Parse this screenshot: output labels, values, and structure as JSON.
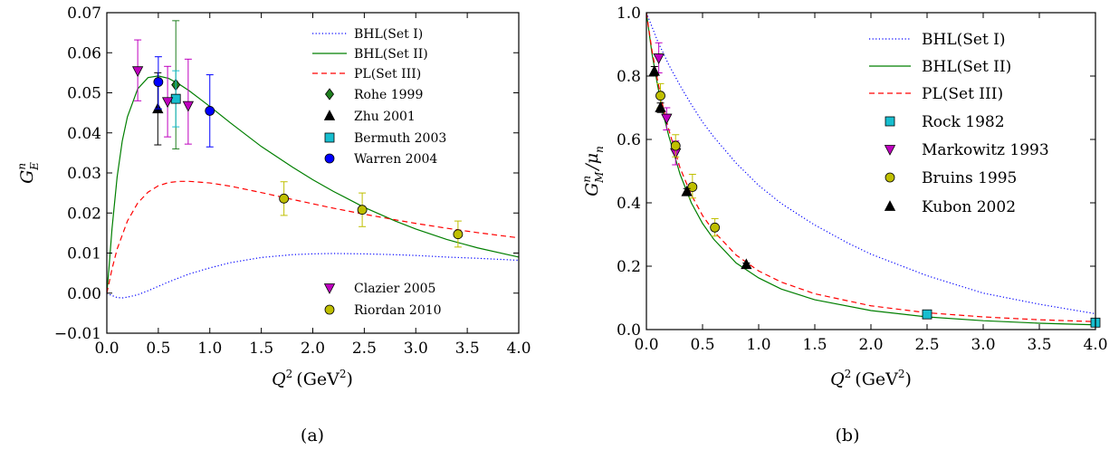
{
  "chart_data": [
    {
      "type": "line",
      "panel_label": "(a)",
      "xlabel_var": "Q",
      "xlabel_sup": "2",
      "xlabel_unit": "(GeV",
      "xlabel_unit_sup": "2",
      "xlabel_close": ")",
      "ylabel_var": "G",
      "ylabel_sup": "n",
      "ylabel_sub": "E",
      "xlim": [
        0,
        4
      ],
      "ylim": [
        -0.01,
        0.07
      ],
      "xticks": [
        "0.0",
        "0.5",
        "1.0",
        "1.5",
        "2.0",
        "2.5",
        "3.0",
        "3.5",
        "4.0"
      ],
      "yticks": [
        "−0.01",
        "0.00",
        "0.01",
        "0.02",
        "0.03",
        "0.04",
        "0.05",
        "0.06",
        "0.07"
      ],
      "grid": false,
      "legend_placement": "upper-right and lower-right",
      "series": [
        {
          "name": "BHL(Set I)",
          "kind": "line",
          "style": "dotted",
          "color": "#0000ff",
          "x": [
            0,
            0.05,
            0.1,
            0.15,
            0.2,
            0.3,
            0.4,
            0.6,
            0.8,
            1.0,
            1.2,
            1.5,
            1.8,
            2.0,
            2.2,
            2.5,
            2.8,
            3.0,
            3.3,
            3.6,
            4.0
          ],
          "y": [
            0.0,
            -0.0006,
            -0.0011,
            -0.0012,
            -0.001,
            -0.0004,
            0.0006,
            0.0028,
            0.0048,
            0.0063,
            0.0076,
            0.0089,
            0.0096,
            0.0098,
            0.0099,
            0.0098,
            0.0096,
            0.0094,
            0.009,
            0.0087,
            0.0082
          ]
        },
        {
          "name": "BHL(Set II)",
          "kind": "line",
          "style": "solid",
          "color": "#007f00",
          "x": [
            0,
            0.02,
            0.05,
            0.1,
            0.15,
            0.2,
            0.3,
            0.4,
            0.5,
            0.6,
            0.7,
            0.8,
            1.0,
            1.2,
            1.5,
            1.8,
            2.0,
            2.2,
            2.5,
            2.8,
            3.0,
            3.3,
            3.6,
            4.0
          ],
          "y": [
            0.0,
            0.006,
            0.016,
            0.029,
            0.038,
            0.044,
            0.051,
            0.0538,
            0.0542,
            0.0536,
            0.0522,
            0.0505,
            0.0466,
            0.0425,
            0.0366,
            0.0315,
            0.0283,
            0.0254,
            0.0214,
            0.018,
            0.016,
            0.0134,
            0.0113,
            0.009
          ]
        },
        {
          "name": "PL(Set III)",
          "kind": "line",
          "style": "dashed",
          "color": "#ff0000",
          "x": [
            0,
            0.05,
            0.1,
            0.2,
            0.3,
            0.4,
            0.5,
            0.6,
            0.7,
            0.8,
            1.0,
            1.2,
            1.5,
            1.8,
            2.0,
            2.2,
            2.5,
            2.8,
            3.0,
            3.3,
            3.6,
            4.0
          ],
          "y": [
            0.0,
            0.006,
            0.011,
            0.018,
            0.0225,
            0.0252,
            0.0268,
            0.0276,
            0.0279,
            0.0279,
            0.0275,
            0.0267,
            0.0251,
            0.0234,
            0.0223,
            0.0212,
            0.0197,
            0.0183,
            0.0174,
            0.0162,
            0.0151,
            0.0138
          ]
        },
        {
          "name": "Rohe 1999",
          "kind": "points",
          "marker": "diamond",
          "color": "#1f7f1f",
          "points": [
            {
              "x": 0.67,
              "y": 0.052,
              "lo": 0.036,
              "hi": 0.068
            }
          ]
        },
        {
          "name": "Zhu 2001",
          "kind": "points",
          "marker": "triangle-up",
          "color": "#000000",
          "points": [
            {
              "x": 0.495,
              "y": 0.046,
              "lo": 0.037,
              "hi": 0.055
            }
          ]
        },
        {
          "name": "Bermuth 2003",
          "kind": "points",
          "marker": "square",
          "color": "#17becf",
          "points": [
            {
              "x": 0.67,
              "y": 0.0485,
              "lo": 0.0415,
              "hi": 0.0555
            }
          ]
        },
        {
          "name": "Warren 2004",
          "kind": "points",
          "marker": "circle",
          "color": "#0000ff",
          "points": [
            {
              "x": 0.5,
              "y": 0.0527,
              "lo": 0.046,
              "hi": 0.059
            },
            {
              "x": 1.0,
              "y": 0.0455,
              "lo": 0.0365,
              "hi": 0.0545
            }
          ]
        },
        {
          "name": "Clazier 2005",
          "kind": "points",
          "marker": "triangle-down",
          "color": "#bf00bf",
          "points": [
            {
              "x": 0.3,
              "y": 0.0555,
              "lo": 0.048,
              "hi": 0.0632
            },
            {
              "x": 0.59,
              "y": 0.0478,
              "lo": 0.039,
              "hi": 0.0566
            },
            {
              "x": 0.79,
              "y": 0.0468,
              "lo": 0.0372,
              "hi": 0.0584
            }
          ]
        },
        {
          "name": "Riordan 2010",
          "kind": "points",
          "marker": "circle",
          "color": "#bfbf00",
          "points": [
            {
              "x": 1.72,
              "y": 0.0236,
              "lo": 0.0194,
              "hi": 0.0278
            },
            {
              "x": 2.48,
              "y": 0.0208,
              "lo": 0.0166,
              "hi": 0.025
            },
            {
              "x": 3.41,
              "y": 0.0147,
              "lo": 0.0115,
              "hi": 0.018
            }
          ]
        }
      ]
    },
    {
      "type": "line",
      "panel_label": "(b)",
      "xlabel_var": "Q",
      "xlabel_sup": "2",
      "xlabel_unit": "(GeV",
      "xlabel_unit_sup": "2",
      "xlabel_close": ")",
      "ylabel_var": "G",
      "ylabel_sup": "n",
      "ylabel_sub": "M",
      "ylabel_div": "/μ",
      "ylabel_div_sub": "n",
      "xlim": [
        0,
        4
      ],
      "ylim": [
        0,
        1.0
      ],
      "xticks": [
        "0.0",
        "0.5",
        "1.0",
        "1.5",
        "2.0",
        "2.5",
        "3.0",
        "3.5",
        "4.0"
      ],
      "yticks": [
        "0.0",
        "0.2",
        "0.4",
        "0.6",
        "0.8",
        "1.0"
      ],
      "grid": false,
      "legend_placement": "upper-right",
      "series": [
        {
          "name": "BHL(Set I)",
          "kind": "line",
          "style": "dotted",
          "color": "#0000ff",
          "x": [
            0,
            0.1,
            0.2,
            0.3,
            0.4,
            0.5,
            0.6,
            0.8,
            1.0,
            1.2,
            1.5,
            1.8,
            2.0,
            2.5,
            3.0,
            3.5,
            4.0
          ],
          "y": [
            1.0,
            0.91,
            0.835,
            0.77,
            0.71,
            0.655,
            0.608,
            0.525,
            0.455,
            0.398,
            0.33,
            0.272,
            0.238,
            0.17,
            0.115,
            0.08,
            0.05
          ]
        },
        {
          "name": "BHL(Set II)",
          "kind": "line",
          "style": "solid",
          "color": "#007f00",
          "x": [
            0,
            0.05,
            0.1,
            0.15,
            0.2,
            0.3,
            0.4,
            0.5,
            0.6,
            0.8,
            1.0,
            1.2,
            1.5,
            2.0,
            2.5,
            3.0,
            3.5,
            4.0
          ],
          "y": [
            1.0,
            0.87,
            0.77,
            0.68,
            0.61,
            0.49,
            0.4,
            0.335,
            0.285,
            0.21,
            0.163,
            0.128,
            0.094,
            0.06,
            0.04,
            0.028,
            0.02,
            0.015
          ]
        },
        {
          "name": "PL(Set III)",
          "kind": "line",
          "style": "dashed",
          "color": "#ff0000",
          "x": [
            0,
            0.05,
            0.1,
            0.15,
            0.2,
            0.3,
            0.4,
            0.5,
            0.6,
            0.8,
            1.0,
            1.2,
            1.5,
            2.0,
            2.5,
            3.0,
            3.5,
            4.0
          ],
          "y": [
            1.0,
            0.88,
            0.785,
            0.7,
            0.63,
            0.51,
            0.425,
            0.36,
            0.31,
            0.235,
            0.185,
            0.15,
            0.113,
            0.075,
            0.053,
            0.04,
            0.031,
            0.025
          ]
        },
        {
          "name": "Rock 1982",
          "kind": "points",
          "marker": "square",
          "color": "#17becf",
          "points": [
            {
              "x": 2.5,
              "y": 0.048,
              "lo": 0.043,
              "hi": 0.053
            },
            {
              "x": 4.0,
              "y": 0.022,
              "lo": 0.018,
              "hi": 0.026
            }
          ]
        },
        {
          "name": "Markowitz 1993",
          "kind": "points",
          "marker": "triangle-down",
          "color": "#bf00bf",
          "points": [
            {
              "x": 0.11,
              "y": 0.857,
              "lo": 0.81,
              "hi": 0.905
            },
            {
              "x": 0.18,
              "y": 0.667,
              "lo": 0.63,
              "hi": 0.7
            },
            {
              "x": 0.26,
              "y": 0.558,
              "lo": 0.52,
              "hi": 0.595
            }
          ]
        },
        {
          "name": "Bruins 1995",
          "kind": "points",
          "marker": "circle",
          "color": "#bfbf00",
          "points": [
            {
              "x": 0.125,
              "y": 0.738,
              "lo": 0.7,
              "hi": 0.776
            },
            {
              "x": 0.26,
              "y": 0.58,
              "lo": 0.545,
              "hi": 0.615
            },
            {
              "x": 0.41,
              "y": 0.45,
              "lo": 0.415,
              "hi": 0.49
            },
            {
              "x": 0.61,
              "y": 0.322,
              "lo": 0.295,
              "hi": 0.35
            }
          ]
        },
        {
          "name": "Kubon 2002",
          "kind": "points",
          "marker": "triangle-up",
          "color": "#000000",
          "points": [
            {
              "x": 0.071,
              "y": 0.815,
              "lo": 0.8,
              "hi": 0.83
            },
            {
              "x": 0.125,
              "y": 0.7,
              "lo": 0.685,
              "hi": 0.715
            },
            {
              "x": 0.36,
              "y": 0.435,
              "lo": 0.425,
              "hi": 0.445
            },
            {
              "x": 0.89,
              "y": 0.205,
              "lo": 0.2,
              "hi": 0.21
            }
          ]
        }
      ]
    }
  ]
}
